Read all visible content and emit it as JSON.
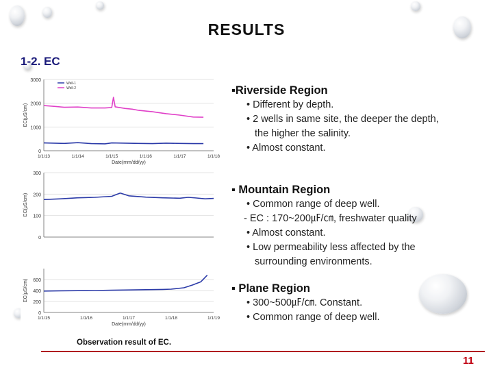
{
  "slide": {
    "title": "RESULTS",
    "section": "1-2. EC",
    "caption": "Observation result of EC.",
    "page_number": "11"
  },
  "regions": [
    {
      "title": "▪Riverside Region",
      "lines": [
        "• Different by depth.",
        "• 2 wells in same site, the deeper the depth,",
        "the higher the salinity.",
        "• Almost constant."
      ]
    },
    {
      "title": "▪ Mountain Region",
      "lines": [
        "• Common range of deep well.",
        "- EC : 170~200㎌/㎝, freshwater quality",
        "• Almost constant.",
        "• Low permeability less affected by the",
        "surrounding environments."
      ]
    },
    {
      "title": "▪  Plane Region",
      "lines": [
        "• 300~500㎌/㎝. Constant.",
        "• Common range of deep well."
      ]
    }
  ],
  "chart_data": [
    {
      "type": "line",
      "ylabel": "EC(μS/cm)",
      "xlabel": "Date(mm/dd/yy)",
      "ylim": [
        0,
        3000
      ],
      "yticks": [
        "0",
        "1000",
        "2000",
        "3000"
      ],
      "xticks": [
        "1/1/13",
        "1/1/14",
        "1/1/15",
        "1/1/16",
        "1/1/17",
        "1/1/18"
      ],
      "legend": [
        "Well-1",
        "Well-2"
      ],
      "legend_position": "top-left",
      "series": [
        {
          "name": "Well-1",
          "color": "#2b3aa8",
          "x": [
            2013.0,
            2013.3,
            2013.6,
            2014.0,
            2014.4,
            2014.8,
            2015.0,
            2015.4,
            2015.8,
            2016.2,
            2016.6,
            2017.0,
            2017.4,
            2017.7
          ],
          "y": [
            330,
            320,
            310,
            340,
            300,
            290,
            330,
            320,
            310,
            300,
            320,
            310,
            300,
            300
          ]
        },
        {
          "name": "Well-2",
          "color": "#e040c8",
          "x": [
            2013.0,
            2013.3,
            2013.6,
            2014.0,
            2014.4,
            2014.8,
            2015.0,
            2015.05,
            2015.1,
            2015.4,
            2015.6,
            2015.8,
            2016.2,
            2016.6,
            2017.0,
            2017.4,
            2017.7
          ],
          "y": [
            1900,
            1870,
            1830,
            1840,
            1800,
            1800,
            1820,
            2250,
            1850,
            1780,
            1750,
            1700,
            1640,
            1560,
            1500,
            1420,
            1410
          ]
        }
      ]
    },
    {
      "type": "line",
      "ylabel": "EC(μS/cm)",
      "ylim": [
        0,
        300
      ],
      "yticks": [
        "0",
        "100",
        "200",
        "300"
      ],
      "series": [
        {
          "color": "#2b3aa8",
          "x": [
            0.0,
            0.1,
            0.2,
            0.3,
            0.4,
            0.45,
            0.5,
            0.6,
            0.7,
            0.8,
            0.85,
            0.9,
            0.95,
            1.0
          ],
          "y": [
            175,
            178,
            183,
            185,
            190,
            205,
            192,
            186,
            183,
            181,
            185,
            182,
            178,
            180
          ]
        }
      ]
    },
    {
      "type": "line",
      "ylabel": "EC(μS/cm)",
      "xlabel": "Date(mm/dd/yy)",
      "ylim": [
        0,
        800
      ],
      "yticks": [
        "0",
        "200",
        "400",
        "600"
      ],
      "xticks": [
        "1/1/15",
        "1/1/16",
        "1/1/17",
        "1/1/18",
        "1/1/19"
      ],
      "series": [
        {
          "color": "#2b3aa8",
          "x": [
            2015.0,
            2015.4,
            2015.8,
            2016.2,
            2016.6,
            2017.0,
            2017.4,
            2017.8,
            2018.0,
            2018.3,
            2018.5,
            2018.7,
            2018.85
          ],
          "y": [
            390,
            395,
            398,
            400,
            405,
            410,
            415,
            420,
            425,
            450,
            500,
            560,
            680
          ]
        }
      ]
    }
  ]
}
